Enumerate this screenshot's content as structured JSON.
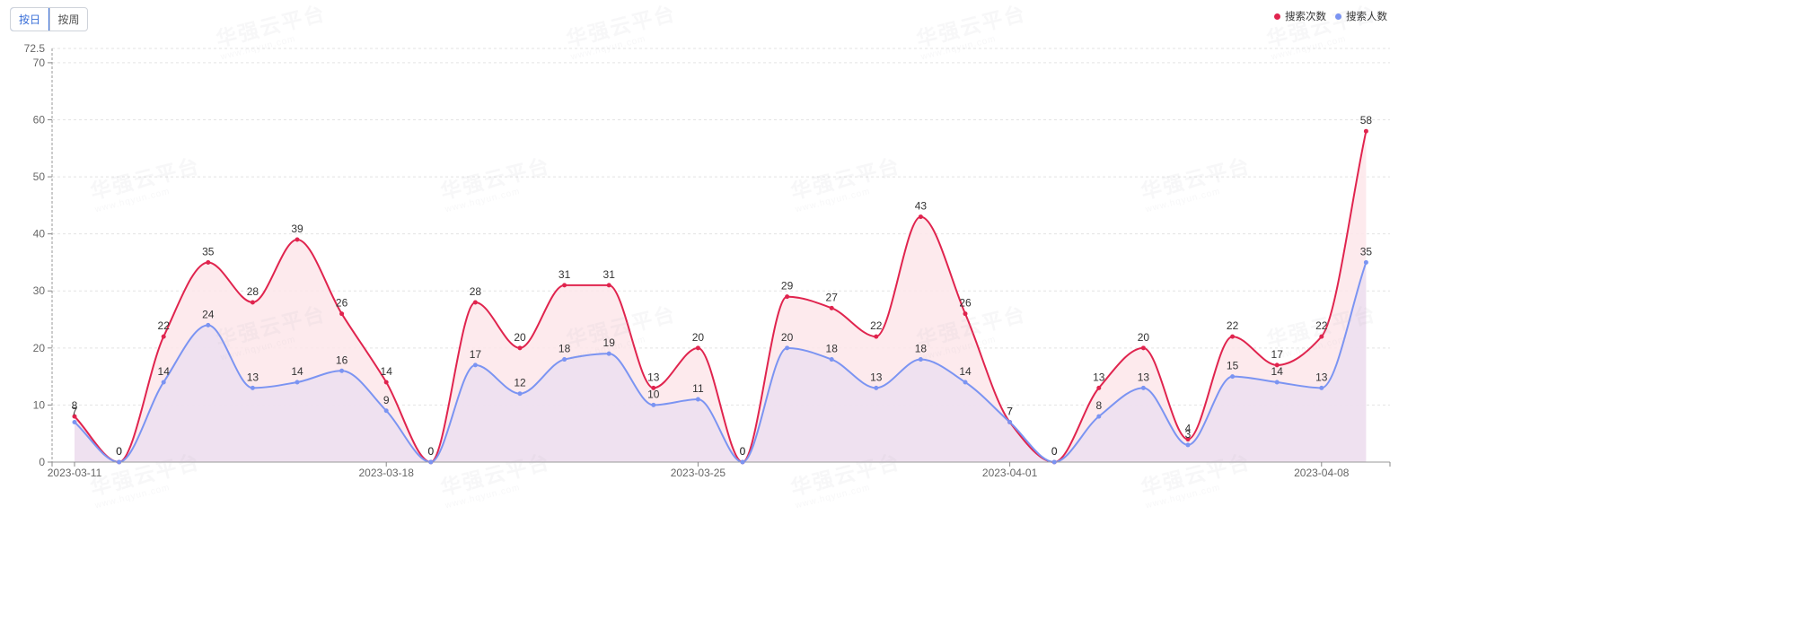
{
  "toggle": {
    "day_label": "按日",
    "week_label": "按周"
  },
  "watermark": {
    "text": "华强云平台",
    "url": "www.hqyun.com"
  },
  "colors": {
    "series_search_count": "#e0244e",
    "series_search_users": "#7b94f2",
    "fill_search_count": "#fde6ea",
    "fill_search_users": "#ecdff0",
    "accent": "#3a6fd8"
  },
  "chart_data": {
    "type": "line",
    "smooth": true,
    "area": true,
    "x": [
      "2023-03-11",
      "2023-03-12",
      "2023-03-13",
      "2023-03-14",
      "2023-03-15",
      "2023-03-16",
      "2023-03-17",
      "2023-03-18",
      "2023-03-19",
      "2023-03-20",
      "2023-03-21",
      "2023-03-22",
      "2023-03-23",
      "2023-03-24",
      "2023-03-25",
      "2023-03-26",
      "2023-03-27",
      "2023-03-28",
      "2023-03-29",
      "2023-03-30",
      "2023-03-31",
      "2023-04-01",
      "2023-04-02",
      "2023-04-03",
      "2023-04-04",
      "2023-04-05",
      "2023-04-06",
      "2023-04-07",
      "2023-04-08",
      "2023-04-09"
    ],
    "x_tick_labels": [
      "2023-03-11",
      "2023-03-18",
      "2023-03-25",
      "2023-04-01",
      "2023-04-08"
    ],
    "y_ticks": [
      0,
      10,
      20,
      30,
      40,
      50,
      60,
      70
    ],
    "y_max_label": "72.5",
    "ylim": [
      0,
      72.5
    ],
    "grid": true,
    "legend_position": "top-right",
    "series": [
      {
        "name": "搜索次数",
        "values": [
          8,
          0,
          22,
          35,
          28,
          39,
          26,
          14,
          0,
          28,
          20,
          31,
          31,
          13,
          20,
          0,
          29,
          27,
          22,
          43,
          26,
          7,
          0,
          13,
          20,
          4,
          22,
          17,
          22,
          58
        ]
      },
      {
        "name": "搜索人数",
        "values": [
          7,
          0,
          14,
          24,
          13,
          14,
          16,
          9,
          0,
          17,
          12,
          18,
          19,
          10,
          11,
          0,
          20,
          18,
          13,
          18,
          14,
          7,
          0,
          8,
          13,
          3,
          15,
          14,
          13,
          35
        ]
      }
    ]
  }
}
